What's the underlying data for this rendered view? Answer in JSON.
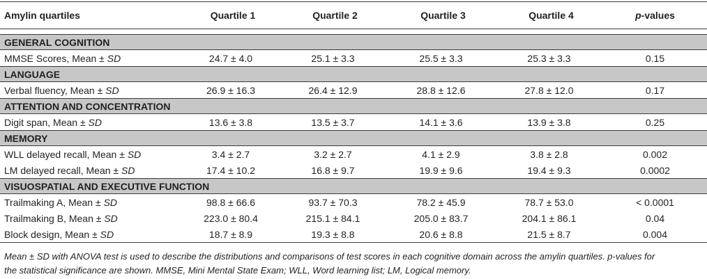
{
  "table": {
    "header": {
      "label": "Amylin quartiles",
      "q1": "Quartile 1",
      "q2": "Quartile 2",
      "q3": "Quartile 3",
      "q4": "Quartile 4",
      "p_italic": "p",
      "p_rest": "-values"
    },
    "sections": [
      {
        "title": "GENERAL COGNITION",
        "rows": [
          {
            "label": "MMSE Scores, Mean ± ",
            "sd": "SD",
            "values": [
              "24.7 ± 4.0",
              "25.1 ± 3.3",
              "25.5 ± 3.3",
              "25.3 ± 3.3"
            ],
            "p": "0.15"
          }
        ]
      },
      {
        "title": "LANGUAGE",
        "rows": [
          {
            "label": "Verbal fluency, Mean ± ",
            "sd": "SD",
            "values": [
              "26.9 ± 16.3",
              "26.4 ± 12.9",
              "28.8 ± 12.6",
              "27.8 ± 12.0"
            ],
            "p": "0.17"
          }
        ]
      },
      {
        "title": "ATTENTION AND CONCENTRATION",
        "rows": [
          {
            "label": "Digit span, Mean ± ",
            "sd": "SD",
            "values": [
              "13.6 ± 3.8",
              "13.5 ± 3.7",
              "14.1 ± 3.6",
              "13.9 ± 3.8"
            ],
            "p": "0.25"
          }
        ]
      },
      {
        "title": "MEMORY",
        "rows": [
          {
            "label": "WLL delayed recall, Mean ± ",
            "sd": "SD",
            "values": [
              "3.4 ± 2.7",
              "3.2 ± 2.7",
              "4.1 ± 2.9",
              "3.8 ± 2.8"
            ],
            "p": "0.002"
          },
          {
            "label": "LM delayed recall, Mean ± ",
            "sd": "SD",
            "values": [
              "17.4 ± 10.2",
              "16.8 ± 9.7",
              "19.9 ± 9.6",
              "19.4 ± 9.3"
            ],
            "p": "0.0002"
          }
        ]
      },
      {
        "title": "VISUOSPATIAL AND EXECUTIVE FUNCTION",
        "rows": [
          {
            "label": "Trailmaking A, Mean ± ",
            "sd": "SD",
            "values": [
              "98.8 ± 66.6",
              "93.7 ± 70.3",
              "78.2 ± 45.9",
              "78.7 ± 53.0"
            ],
            "p": "< 0.0001"
          },
          {
            "label": "Trailmaking B, Mean ± ",
            "sd": "SD",
            "values": [
              "223.0 ± 80.4",
              "215.1 ± 84.1",
              "205.0 ± 83.7",
              "204.1 ± 86.1"
            ],
            "p": "0.04"
          },
          {
            "label": "Block design, Mean ± ",
            "sd": "SD",
            "values": [
              "18.7 ± 8.9",
              "19.3 ± 8.8",
              "20.6 ± 8.8",
              "21.5 ± 8.7"
            ],
            "p": "0.004"
          }
        ]
      }
    ]
  },
  "footnote": {
    "line1": "Mean ± SD with ANOVA test is used to describe the distributions and comparisons of test scores in each cognitive domain across the amylin quartiles. p-values for",
    "line2": "the statistical significance are shown. MMSE, Mini Mental State Exam; WLL, Word learning list; LM, Logical memory."
  }
}
